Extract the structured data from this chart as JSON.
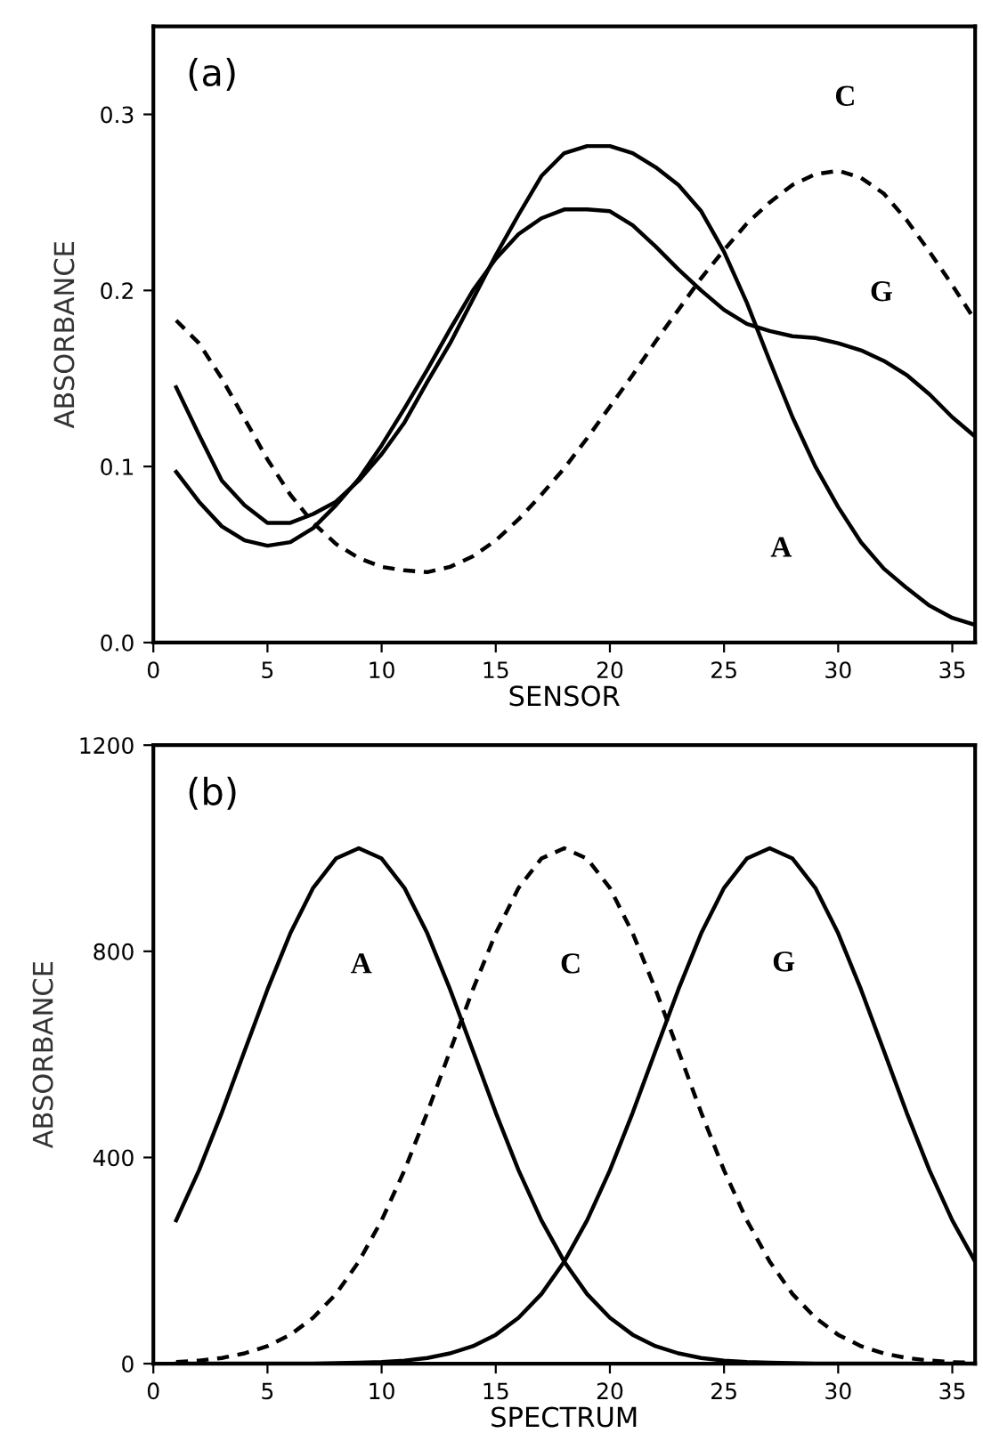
{
  "chart_data": [
    {
      "type": "line",
      "xlabel": "SENSOR",
      "ylabel": "ABSORBANCE",
      "x": [
        1,
        2,
        3,
        4,
        5,
        6,
        7,
        8,
        9,
        10,
        11,
        12,
        13,
        14,
        15,
        16,
        17,
        18,
        19,
        20,
        21,
        22,
        23,
        24,
        25,
        26,
        27,
        28,
        29,
        30,
        31,
        32,
        33,
        34,
        35,
        36
      ],
      "xlim": [
        0,
        36
      ],
      "xticks": [
        0,
        5,
        10,
        15,
        20,
        25,
        30,
        35
      ],
      "ylim": [
        0,
        0.35
      ],
      "yticks": [
        {
          "value": 0,
          "label": "0.0"
        },
        0.1,
        0.2,
        0.3
      ],
      "grid": false,
      "marker": "none",
      "series": [
        {
          "name": "A",
          "color": "#000000",
          "line_style": "solid",
          "values": [
            0.145,
            0.118,
            0.092,
            0.078,
            0.068,
            0.068,
            0.073,
            0.08,
            0.092,
            0.107,
            0.125,
            0.148,
            0.17,
            0.195,
            0.22,
            0.243,
            0.265,
            0.278,
            0.282,
            0.282,
            0.278,
            0.27,
            0.26,
            0.245,
            0.222,
            0.193,
            0.16,
            0.128,
            0.1,
            0.077,
            0.057,
            0.042,
            0.031,
            0.021,
            0.014,
            0.01
          ]
        },
        {
          "name": "G",
          "color": "#000000",
          "line_style": "solid",
          "values": [
            0.097,
            0.08,
            0.066,
            0.058,
            0.055,
            0.057,
            0.065,
            0.078,
            0.093,
            0.112,
            0.133,
            0.155,
            0.178,
            0.2,
            0.218,
            0.232,
            0.241,
            0.246,
            0.246,
            0.245,
            0.237,
            0.225,
            0.212,
            0.2,
            0.189,
            0.181,
            0.177,
            0.174,
            0.173,
            0.17,
            0.166,
            0.16,
            0.152,
            0.141,
            0.128,
            0.117
          ]
        },
        {
          "name": "C",
          "color": "#000000",
          "line_style": "dashed",
          "values": [
            0.183,
            0.17,
            0.15,
            0.127,
            0.104,
            0.084,
            0.068,
            0.056,
            0.048,
            0.043,
            0.041,
            0.04,
            0.043,
            0.049,
            0.058,
            0.07,
            0.084,
            0.099,
            0.116,
            0.134,
            0.152,
            0.171,
            0.189,
            0.207,
            0.223,
            0.238,
            0.25,
            0.26,
            0.266,
            0.268,
            0.264,
            0.255,
            0.24,
            0.222,
            0.203,
            0.183
          ]
        }
      ],
      "annotations": [
        "(a)"
      ]
    },
    {
      "type": "line",
      "xlabel": "SPECTRUM",
      "ylabel": "ABSORBANCE",
      "x": [
        1,
        2,
        3,
        4,
        5,
        6,
        7,
        8,
        9,
        10,
        11,
        12,
        13,
        14,
        15,
        16,
        17,
        18,
        19,
        20,
        21,
        22,
        23,
        24,
        25,
        26,
        27,
        28,
        29,
        30,
        31,
        32,
        33,
        34,
        35,
        36
      ],
      "xlim": [
        0,
        36
      ],
      "xticks": [
        0,
        5,
        10,
        15,
        20,
        25,
        30,
        35
      ],
      "ylim": [
        0,
        1200
      ],
      "yticks": [
        0,
        400,
        800,
        1200
      ],
      "grid": false,
      "marker": "none",
      "series": [
        {
          "name": "A",
          "color": "#000000",
          "line_style": "solid",
          "values": [
            278,
            375,
            487,
            607,
            726,
            835,
            923,
            980,
            1000,
            980,
            923,
            835,
            726,
            607,
            487,
            375,
            278,
            198,
            135,
            89,
            56,
            34,
            20,
            11,
            6,
            3,
            2,
            1,
            0,
            0,
            0,
            0,
            0,
            0,
            0,
            0
          ]
        },
        {
          "name": "C",
          "color": "#000000",
          "line_style": "dashed",
          "values": [
            3,
            6,
            11,
            20,
            34,
            56,
            89,
            135,
            198,
            278,
            375,
            487,
            607,
            726,
            835,
            923,
            980,
            1000,
            980,
            923,
            835,
            726,
            607,
            487,
            375,
            278,
            198,
            135,
            89,
            56,
            34,
            20,
            11,
            6,
            3,
            2
          ]
        },
        {
          "name": "G",
          "color": "#000000",
          "line_style": "solid",
          "values": [
            0,
            0,
            0,
            0,
            0,
            0,
            0,
            1,
            2,
            3,
            6,
            11,
            20,
            34,
            56,
            89,
            135,
            198,
            278,
            375,
            487,
            607,
            726,
            835,
            923,
            980,
            1000,
            980,
            923,
            835,
            726,
            607,
            487,
            375,
            278,
            198
          ]
        }
      ],
      "annotations": [
        "(b)"
      ]
    }
  ]
}
